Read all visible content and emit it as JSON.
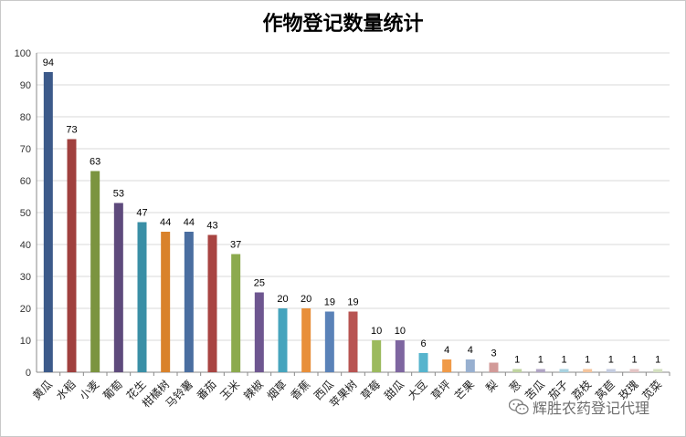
{
  "chart_data": {
    "type": "bar",
    "title": "作物登记数量统计",
    "xlabel": "",
    "ylabel": "",
    "ylim": [
      0,
      100
    ],
    "yticks": [
      0,
      10,
      20,
      30,
      40,
      50,
      60,
      70,
      80,
      90,
      100
    ],
    "grid": true,
    "categories": [
      "黄瓜",
      "水稻",
      "小麦",
      "葡萄",
      "花生",
      "柑橘树",
      "马铃薯",
      "番茄",
      "玉米",
      "辣椒",
      "烟草",
      "香蕉",
      "西瓜",
      "苹果树",
      "草莓",
      "甜瓜",
      "大豆",
      "草坪",
      "芒果",
      "梨",
      "葱",
      "苦瓜",
      "茄子",
      "荔枝",
      "莴苣",
      "玫瑰",
      "苋菜"
    ],
    "values": [
      94,
      73,
      63,
      53,
      47,
      44,
      44,
      43,
      37,
      25,
      20,
      20,
      19,
      19,
      10,
      10,
      6,
      4,
      4,
      3,
      1,
      1,
      1,
      1,
      1,
      1,
      1
    ],
    "colors": [
      "#3c5a8a",
      "#a0403e",
      "#7b9440",
      "#5e4a7c",
      "#3a8fa6",
      "#d9822b",
      "#4a6ea0",
      "#a84442",
      "#8caa4e",
      "#6e5690",
      "#46a4bd",
      "#e88f3a",
      "#5a82b8",
      "#b85452",
      "#9cba5e",
      "#7e66a0",
      "#56b4cd",
      "#f09a48",
      "#98b0d0",
      "#d29a98",
      "#c0d4a0",
      "#b0a4c4",
      "#a8d2e0",
      "#f4c49c",
      "#c4cce0",
      "#e4c4c4",
      "#d4e0c0"
    ]
  },
  "watermark": {
    "text": "辉胜农药登记代理",
    "icon": "wechat-icon"
  }
}
